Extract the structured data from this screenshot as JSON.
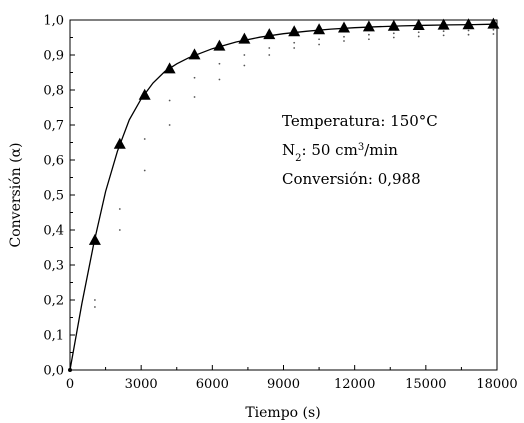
{
  "chart_data": {
    "type": "line",
    "xlabel": "Tiempo (s)",
    "ylabel": "Conversión (α)",
    "xlim": [
      0,
      18000
    ],
    "ylim": [
      0,
      1.0
    ],
    "x_ticks": [
      0,
      3000,
      6000,
      9000,
      12000,
      15000,
      18000
    ],
    "x_tick_labels": [
      "0",
      "3000",
      "6000",
      "9000",
      "12000",
      "15000",
      "18000"
    ],
    "y_ticks": [
      0,
      0.1,
      0.2,
      0.3,
      0.4,
      0.5,
      0.6,
      0.7,
      0.8,
      0.9,
      1.0
    ],
    "y_tick_labels": [
      "0,0",
      "0,1",
      "0,2",
      "0,3",
      "0,4",
      "0,5",
      "0,6",
      "0,7",
      "0,8",
      "0,9",
      "1,0"
    ],
    "grid": false,
    "series": [
      {
        "marker": "triangle",
        "x": [
          0,
          1050,
          2100,
          3150,
          4200,
          5250,
          6300,
          7350,
          8400,
          9450,
          10500,
          11550,
          12600,
          13650,
          14700,
          15750,
          16800,
          17850
        ],
        "y": [
          0.0,
          0.37,
          0.645,
          0.785,
          0.86,
          0.9,
          0.925,
          0.945,
          0.958,
          0.966,
          0.972,
          0.977,
          0.98,
          0.982,
          0.984,
          0.985,
          0.986,
          0.988
        ]
      }
    ],
    "fit": {
      "style": "solid",
      "x": [
        0,
        500,
        1000,
        1500,
        2000,
        2500,
        3000,
        3500,
        4000,
        4500,
        5000,
        6000,
        7000,
        8000,
        9000,
        10000,
        11000,
        12000,
        13000,
        14000,
        15000,
        16000,
        17000,
        17850
      ],
      "y": [
        0.0,
        0.19,
        0.36,
        0.51,
        0.625,
        0.715,
        0.775,
        0.82,
        0.853,
        0.875,
        0.892,
        0.918,
        0.937,
        0.951,
        0.961,
        0.968,
        0.974,
        0.978,
        0.981,
        0.983,
        0.985,
        0.986,
        0.987,
        0.988
      ]
    },
    "dotted_curves": [
      {
        "x": [
          1050,
          2100,
          3150,
          4200,
          5250,
          6300,
          7350,
          8400,
          9450,
          10500,
          11550,
          12600,
          13650,
          14700,
          15750,
          16800,
          17850
        ],
        "y": [
          0.2,
          0.46,
          0.66,
          0.77,
          0.835,
          0.875,
          0.9,
          0.92,
          0.935,
          0.945,
          0.952,
          0.958,
          0.962,
          0.965,
          0.968,
          0.97,
          0.972
        ]
      },
      {
        "x": [
          1050,
          2100,
          3150,
          4200,
          5250,
          6300,
          7350,
          8400,
          9450,
          10500,
          11550,
          12600,
          13650,
          14700,
          15750,
          16800,
          17850
        ],
        "y": [
          0.18,
          0.4,
          0.57,
          0.7,
          0.78,
          0.83,
          0.87,
          0.9,
          0.92,
          0.93,
          0.94,
          0.945,
          0.95,
          0.953,
          0.956,
          0.958,
          0.96
        ]
      }
    ],
    "annotations": [
      {
        "text": "Temperatura: 150°C"
      },
      {
        "parts": [
          "N",
          "2",
          ": 50 cm",
          "3",
          "/min"
        ]
      },
      {
        "text": "Conversión: 0,988"
      }
    ]
  }
}
